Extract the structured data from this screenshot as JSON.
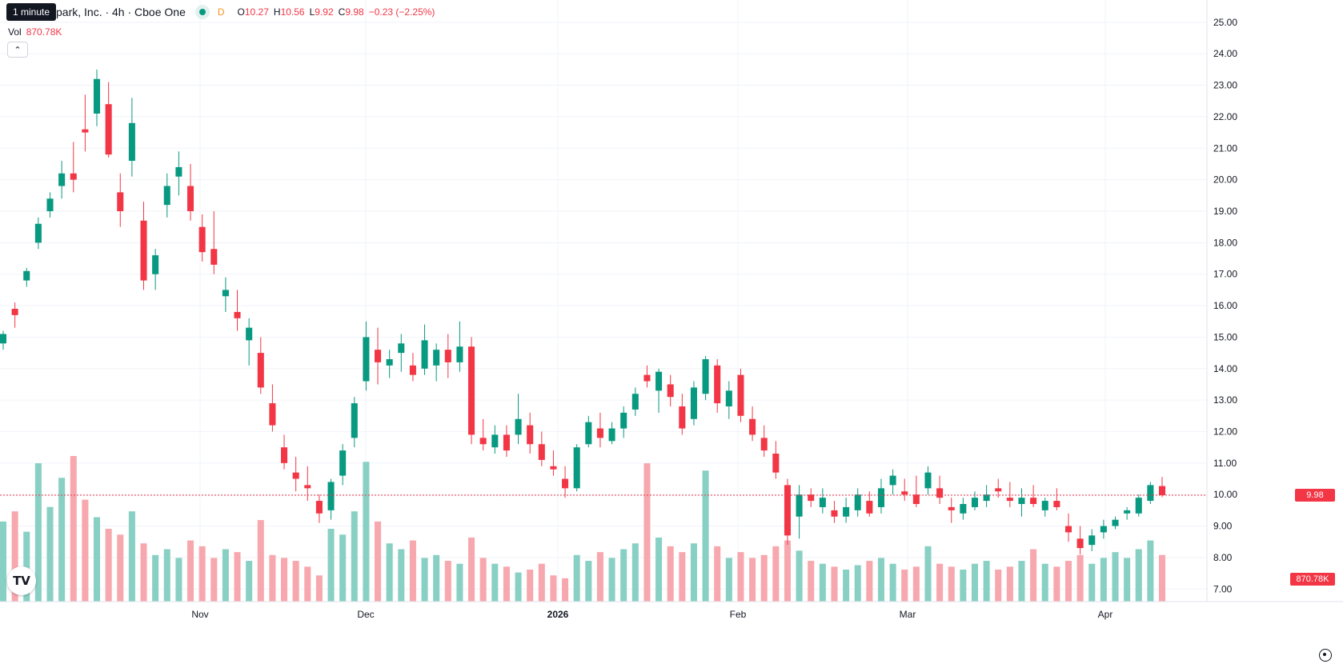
{
  "legend": {
    "title_suffix": "park, Inc. · 4h · Cboe One",
    "tooltip": "1 minute",
    "dcode": "D",
    "open_key": "O",
    "open": "10.27",
    "high_key": "H",
    "high": "10.56",
    "low_key": "L",
    "low": "9.92",
    "close_key": "C",
    "close": "9.98",
    "change": "−0.23 (−2.25%)"
  },
  "volume": {
    "label": "Vol",
    "value": "870.78K"
  },
  "price_axis": {
    "ticks": [
      "25.00",
      "24.00",
      "23.00",
      "22.00",
      "21.00",
      "20.00",
      "19.00",
      "18.00",
      "17.00",
      "16.00",
      "15.00",
      "14.00",
      "13.00",
      "12.00",
      "11.00",
      "10.00",
      "9.00",
      "8.00",
      "7.00"
    ]
  },
  "time_axis": {
    "ticks": [
      "Nov",
      "Dec",
      "2026",
      "Feb",
      "Mar",
      "Apr"
    ]
  },
  "current_price_tag": "9.98",
  "current_volume_tag": "870.78K",
  "logo": {
    "text": "TV"
  },
  "colors": {
    "up": "#089981",
    "down": "#f23645",
    "up_volume": "#89d0c4",
    "down_volume": "#f7a8ae",
    "grid": "#f0f3fa"
  },
  "chart_data": {
    "type": "candlestick",
    "title": "park, Inc. · 4h · Cboe One",
    "ylim": [
      6.6,
      25.2
    ],
    "x_ticks": [
      "Nov",
      "Dec",
      "2026",
      "Feb",
      "Mar",
      "Apr"
    ],
    "candles": [
      [
        14.8,
        15.2,
        14.6,
        15.1
      ],
      [
        15.9,
        16.1,
        15.3,
        15.7
      ],
      [
        16.8,
        17.2,
        16.6,
        17.1
      ],
      [
        18.0,
        18.8,
        17.8,
        18.6
      ],
      [
        19.0,
        19.6,
        18.8,
        19.4
      ],
      [
        19.8,
        20.6,
        19.4,
        20.2
      ],
      [
        20.2,
        21.2,
        19.6,
        20.0
      ],
      [
        21.6,
        22.7,
        20.9,
        21.5
      ],
      [
        22.1,
        23.5,
        21.7,
        23.2
      ],
      [
        22.4,
        23.1,
        20.7,
        20.8
      ],
      [
        19.6,
        20.2,
        18.5,
        19.0
      ],
      [
        20.6,
        22.6,
        20.1,
        21.8
      ],
      [
        18.7,
        19.3,
        16.5,
        16.8
      ],
      [
        17.0,
        17.8,
        16.5,
        17.6
      ],
      [
        19.2,
        20.2,
        18.8,
        19.8
      ],
      [
        20.1,
        20.9,
        19.5,
        20.4
      ],
      [
        19.8,
        20.5,
        18.7,
        19.0
      ],
      [
        18.5,
        18.9,
        17.4,
        17.7
      ],
      [
        17.8,
        19.0,
        17.0,
        17.3
      ],
      [
        16.3,
        16.9,
        15.8,
        16.5
      ],
      [
        15.8,
        16.5,
        15.2,
        15.6
      ],
      [
        14.9,
        15.6,
        14.1,
        15.3
      ],
      [
        14.5,
        15.0,
        13.2,
        13.4
      ],
      [
        12.9,
        13.5,
        12.0,
        12.2
      ],
      [
        11.5,
        11.9,
        10.8,
        11.0
      ],
      [
        10.7,
        11.2,
        10.1,
        10.5
      ],
      [
        10.3,
        10.9,
        9.8,
        10.2
      ],
      [
        9.8,
        10.0,
        9.1,
        9.4
      ],
      [
        9.5,
        10.5,
        9.2,
        10.4
      ],
      [
        10.6,
        11.6,
        10.3,
        11.4
      ],
      [
        11.8,
        13.1,
        11.5,
        12.9
      ],
      [
        13.6,
        15.5,
        13.3,
        15.0
      ],
      [
        14.6,
        15.3,
        13.5,
        14.2
      ],
      [
        14.1,
        14.6,
        13.7,
        14.3
      ],
      [
        14.5,
        15.1,
        13.9,
        14.8
      ],
      [
        14.1,
        14.5,
        13.6,
        13.8
      ],
      [
        14.0,
        15.4,
        13.8,
        14.9
      ],
      [
        14.1,
        14.8,
        13.6,
        14.6
      ],
      [
        14.6,
        15.1,
        13.7,
        14.2
      ],
      [
        14.2,
        15.5,
        13.9,
        14.7
      ],
      [
        14.7,
        15.0,
        11.6,
        11.9
      ],
      [
        11.8,
        12.4,
        11.4,
        11.6
      ],
      [
        11.5,
        12.2,
        11.3,
        11.9
      ],
      [
        11.9,
        12.2,
        11.2,
        11.4
      ],
      [
        11.9,
        13.2,
        11.6,
        12.4
      ],
      [
        12.2,
        12.6,
        11.3,
        11.6
      ],
      [
        11.6,
        12.0,
        10.9,
        11.1
      ],
      [
        10.9,
        11.4,
        10.6,
        10.8
      ],
      [
        10.5,
        10.9,
        9.9,
        10.2
      ],
      [
        10.2,
        11.6,
        10.1,
        11.5
      ],
      [
        11.6,
        12.5,
        11.5,
        12.3
      ],
      [
        12.1,
        12.6,
        11.5,
        11.8
      ],
      [
        11.7,
        12.3,
        11.6,
        12.1
      ],
      [
        12.1,
        12.8,
        11.8,
        12.6
      ],
      [
        12.7,
        13.4,
        12.5,
        13.2
      ],
      [
        13.8,
        14.1,
        13.4,
        13.6
      ],
      [
        13.3,
        14.0,
        12.6,
        13.9
      ],
      [
        13.5,
        13.8,
        12.8,
        13.1
      ],
      [
        12.8,
        13.2,
        11.9,
        12.1
      ],
      [
        12.4,
        13.6,
        12.2,
        13.4
      ],
      [
        13.2,
        14.4,
        13.0,
        14.3
      ],
      [
        14.1,
        14.3,
        12.6,
        12.9
      ],
      [
        12.8,
        13.6,
        12.4,
        13.3
      ],
      [
        13.8,
        14.0,
        12.3,
        12.5
      ],
      [
        12.4,
        12.8,
        11.7,
        11.9
      ],
      [
        11.8,
        12.2,
        11.2,
        11.4
      ],
      [
        11.3,
        11.7,
        10.5,
        10.7
      ],
      [
        10.3,
        10.5,
        8.4,
        8.7
      ],
      [
        9.3,
        10.3,
        8.6,
        10.0
      ],
      [
        10.0,
        10.2,
        9.6,
        9.8
      ],
      [
        9.6,
        10.2,
        9.4,
        9.9
      ],
      [
        9.5,
        9.8,
        9.1,
        9.3
      ],
      [
        9.3,
        9.9,
        9.1,
        9.6
      ],
      [
        9.5,
        10.2,
        9.3,
        10.0
      ],
      [
        9.8,
        10.1,
        9.3,
        9.4
      ],
      [
        9.6,
        10.5,
        9.4,
        10.2
      ],
      [
        10.3,
        10.8,
        10.0,
        10.6
      ],
      [
        10.1,
        10.5,
        9.8,
        10.0
      ],
      [
        10.0,
        10.6,
        9.6,
        9.7
      ],
      [
        10.2,
        10.9,
        10.0,
        10.7
      ],
      [
        10.2,
        10.6,
        9.7,
        9.9
      ],
      [
        9.6,
        9.9,
        9.1,
        9.5
      ],
      [
        9.4,
        9.9,
        9.2,
        9.7
      ],
      [
        9.6,
        10.1,
        9.5,
        9.9
      ],
      [
        9.8,
        10.3,
        9.6,
        10.0
      ],
      [
        10.2,
        10.5,
        9.9,
        10.1
      ],
      [
        9.9,
        10.4,
        9.6,
        9.8
      ],
      [
        9.7,
        10.2,
        9.3,
        9.9
      ],
      [
        9.9,
        10.3,
        9.6,
        9.7
      ],
      [
        9.5,
        9.9,
        9.3,
        9.8
      ],
      [
        9.8,
        10.2,
        9.5,
        9.6
      ],
      [
        9.0,
        9.4,
        8.5,
        8.8
      ],
      [
        8.6,
        9.0,
        8.1,
        8.3
      ],
      [
        8.4,
        8.9,
        8.2,
        8.7
      ],
      [
        8.8,
        9.2,
        8.6,
        9.0
      ],
      [
        9.0,
        9.3,
        8.9,
        9.2
      ],
      [
        9.4,
        9.6,
        9.2,
        9.5
      ],
      [
        9.4,
        10.0,
        9.3,
        9.9
      ],
      [
        9.8,
        10.4,
        9.7,
        10.3
      ],
      [
        10.27,
        10.56,
        9.92,
        9.98
      ]
    ],
    "volume": [
      0.55,
      0.62,
      0.48,
      0.95,
      0.65,
      0.85,
      1.0,
      0.7,
      0.58,
      0.5,
      0.46,
      0.62,
      0.4,
      0.32,
      0.36,
      0.3,
      0.42,
      0.38,
      0.3,
      0.36,
      0.34,
      0.28,
      0.56,
      0.32,
      0.3,
      0.28,
      0.24,
      0.18,
      0.5,
      0.46,
      0.62,
      0.96,
      0.55,
      0.4,
      0.36,
      0.42,
      0.3,
      0.32,
      0.28,
      0.26,
      0.44,
      0.3,
      0.26,
      0.24,
      0.2,
      0.22,
      0.26,
      0.18,
      0.16,
      0.32,
      0.28,
      0.34,
      0.3,
      0.36,
      0.4,
      0.95,
      0.44,
      0.38,
      0.34,
      0.4,
      0.9,
      0.38,
      0.3,
      0.34,
      0.3,
      0.32,
      0.38,
      0.42,
      0.35,
      0.28,
      0.26,
      0.24,
      0.22,
      0.25,
      0.28,
      0.3,
      0.26,
      0.22,
      0.24,
      0.38,
      0.26,
      0.24,
      0.22,
      0.26,
      0.28,
      0.22,
      0.24,
      0.28,
      0.36,
      0.26,
      0.24,
      0.28,
      0.32,
      0.26,
      0.3,
      0.34,
      0.3,
      0.36,
      0.42,
      0.32
    ]
  }
}
